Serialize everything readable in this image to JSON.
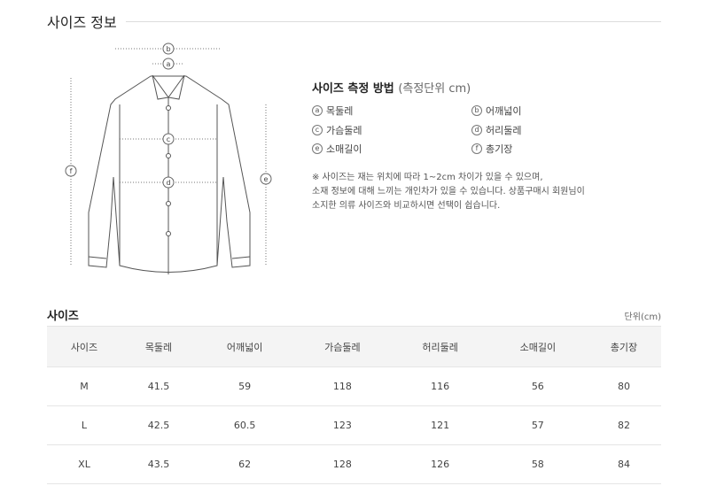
{
  "title": "사이즈 정보",
  "measure": {
    "title": "사이즈 측정 방법",
    "unit_note": "(측정단위 cm)",
    "items": [
      {
        "mark": "a",
        "label": "목둘레"
      },
      {
        "mark": "b",
        "label": "어깨넓이"
      },
      {
        "mark": "c",
        "label": "가슴둘레"
      },
      {
        "mark": "d",
        "label": "허리둘레"
      },
      {
        "mark": "e",
        "label": "소매길이"
      },
      {
        "mark": "f",
        "label": "총기장"
      }
    ],
    "notes": [
      "※ 사이즈는 재는 위치에 따라 1~2cm 차이가 있을 수 있으며,",
      "소재 정보에 대해 느끼는 개인차가 있을 수 있습니다. 상품구매시 회원님이",
      "소지한 의류 사이즈와 비교하시면 선택이 쉽습니다."
    ]
  },
  "diagram_marks": [
    "a",
    "b",
    "c",
    "d",
    "e",
    "f"
  ],
  "size_table": {
    "title": "사이즈",
    "unit": "단위(cm)",
    "headers": [
      "사이즈",
      "목둘레",
      "어깨넓이",
      "가슴둘레",
      "허리둘레",
      "소매길이",
      "총기장"
    ],
    "rows": [
      [
        "M",
        "41.5",
        "59",
        "118",
        "116",
        "56",
        "80"
      ],
      [
        "L",
        "42.5",
        "60.5",
        "123",
        "121",
        "57",
        "82"
      ],
      [
        "XL",
        "43.5",
        "62",
        "128",
        "126",
        "58",
        "84"
      ]
    ]
  }
}
